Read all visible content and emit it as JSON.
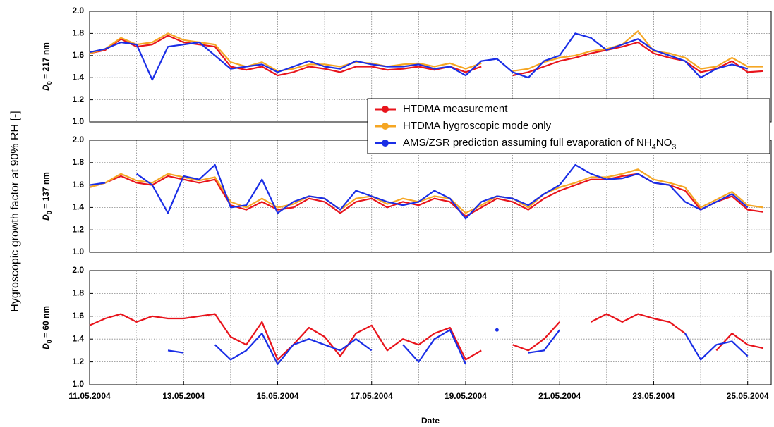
{
  "ylabel": "Hygroscopic growth factor at 90% RH  [-]",
  "chart_data": [
    {
      "type": "line",
      "ylabel": [
        "D",
        "0",
        " = 217 nm"
      ],
      "legend": "center right",
      "ylim": [
        1.0,
        2.0
      ],
      "yticks": [
        {
          "value": 1.0,
          "label": "1.0"
        },
        1.2,
        1.4,
        1.6,
        1.8,
        {
          "value": 2.0,
          "label": "2.0"
        }
      ],
      "grid": true,
      "x": [
        "2004-05-11T00:00",
        "2004-05-11T08:00",
        "2004-05-11T16:00",
        "2004-05-12T00:00",
        "2004-05-12T08:00",
        "2004-05-12T16:00",
        "2004-05-13T00:00",
        "2004-05-13T08:00",
        "2004-05-13T16:00",
        "2004-05-14T00:00",
        "2004-05-14T08:00",
        "2004-05-14T16:00",
        "2004-05-15T00:00",
        "2004-05-15T08:00",
        "2004-05-15T16:00",
        "2004-05-16T00:00",
        "2004-05-16T08:00",
        "2004-05-16T16:00",
        "2004-05-17T00:00",
        "2004-05-17T08:00",
        "2004-05-17T16:00",
        "2004-05-18T00:00",
        "2004-05-18T08:00",
        "2004-05-18T16:00",
        "2004-05-19T00:00",
        "2004-05-19T08:00",
        "2004-05-19T16:00",
        "2004-05-20T00:00",
        "2004-05-20T08:00",
        "2004-05-20T16:00",
        "2004-05-21T00:00",
        "2004-05-21T08:00",
        "2004-05-21T16:00",
        "2004-05-22T00:00",
        "2004-05-22T08:00",
        "2004-05-22T16:00",
        "2004-05-23T00:00",
        "2004-05-23T08:00",
        "2004-05-23T16:00",
        "2004-05-24T00:00",
        "2004-05-24T08:00",
        "2004-05-24T16:00",
        "2004-05-25T00:00",
        "2004-05-25T08:00"
      ],
      "series": [
        {
          "name": "HTDMA measurement",
          "color": "#e8141c",
          "values": [
            1.62,
            1.65,
            1.75,
            1.68,
            1.7,
            1.78,
            1.72,
            1.7,
            1.68,
            1.5,
            1.47,
            1.5,
            1.42,
            1.45,
            1.5,
            1.48,
            1.45,
            1.5,
            1.5,
            1.47,
            1.48,
            1.5,
            1.47,
            1.5,
            1.45,
            1.5,
            null,
            1.42,
            1.45,
            1.5,
            1.55,
            1.58,
            1.62,
            1.65,
            1.68,
            1.72,
            1.62,
            1.58,
            1.55,
            1.45,
            1.48,
            1.55,
            1.45,
            1.46
          ]
        },
        {
          "name": "HTDMA hygroscopic mode only",
          "color": "#f5a623",
          "values": [
            1.62,
            1.66,
            1.76,
            1.7,
            1.72,
            1.8,
            1.74,
            1.72,
            1.7,
            1.54,
            1.5,
            1.54,
            1.46,
            1.48,
            1.52,
            1.52,
            1.5,
            1.54,
            1.53,
            1.5,
            1.52,
            1.53,
            1.5,
            1.53,
            1.48,
            1.53,
            null,
            1.46,
            1.48,
            1.54,
            1.58,
            1.6,
            1.64,
            1.66,
            1.7,
            1.82,
            1.64,
            1.62,
            1.58,
            1.48,
            1.5,
            1.58,
            1.5,
            1.5
          ]
        },
        {
          "name": "AMS/ZSR prediction assuming full evaporation of NH4NO3",
          "color": "#1a2ee6",
          "values": [
            1.63,
            1.66,
            1.72,
            1.7,
            1.38,
            1.68,
            1.7,
            1.72,
            1.6,
            1.48,
            1.5,
            1.52,
            1.45,
            1.5,
            1.55,
            1.5,
            1.48,
            1.55,
            1.52,
            1.5,
            1.5,
            1.52,
            1.48,
            1.5,
            1.42,
            1.55,
            1.57,
            1.45,
            1.4,
            1.55,
            1.6,
            1.8,
            1.76,
            1.65,
            1.7,
            1.75,
            1.65,
            1.6,
            1.55,
            1.4,
            1.48,
            1.52,
            1.48,
            null
          ]
        }
      ]
    },
    {
      "type": "line",
      "ylabel": [
        "D",
        "0",
        " = 137 nm"
      ],
      "ylim": [
        1.0,
        2.0
      ],
      "yticks": [
        {
          "value": 1.0,
          "label": "1.0"
        },
        1.2,
        1.4,
        1.6,
        1.8,
        {
          "value": 2.0,
          "label": "2.0"
        }
      ],
      "grid": true,
      "x": [
        "2004-05-11T00:00",
        "2004-05-11T08:00",
        "2004-05-11T16:00",
        "2004-05-12T00:00",
        "2004-05-12T08:00",
        "2004-05-12T16:00",
        "2004-05-13T00:00",
        "2004-05-13T08:00",
        "2004-05-13T16:00",
        "2004-05-14T00:00",
        "2004-05-14T08:00",
        "2004-05-14T16:00",
        "2004-05-15T00:00",
        "2004-05-15T08:00",
        "2004-05-15T16:00",
        "2004-05-16T00:00",
        "2004-05-16T08:00",
        "2004-05-16T16:00",
        "2004-05-17T00:00",
        "2004-05-17T08:00",
        "2004-05-17T16:00",
        "2004-05-18T00:00",
        "2004-05-18T08:00",
        "2004-05-18T16:00",
        "2004-05-19T00:00",
        "2004-05-19T08:00",
        "2004-05-19T16:00",
        "2004-05-20T00:00",
        "2004-05-20T08:00",
        "2004-05-20T16:00",
        "2004-05-21T00:00",
        "2004-05-21T08:00",
        "2004-05-21T16:00",
        "2004-05-22T00:00",
        "2004-05-22T08:00",
        "2004-05-22T16:00",
        "2004-05-23T00:00",
        "2004-05-23T08:00",
        "2004-05-23T16:00",
        "2004-05-24T00:00",
        "2004-05-24T08:00",
        "2004-05-24T16:00",
        "2004-05-25T00:00",
        "2004-05-25T08:00"
      ],
      "series": [
        {
          "color": "#e8141c",
          "values": [
            1.58,
            1.62,
            1.68,
            1.62,
            1.6,
            1.68,
            1.65,
            1.62,
            1.65,
            1.42,
            1.38,
            1.45,
            1.38,
            1.4,
            1.48,
            1.45,
            1.35,
            1.45,
            1.48,
            1.4,
            1.45,
            1.42,
            1.48,
            1.45,
            1.32,
            1.4,
            1.48,
            1.45,
            1.38,
            1.48,
            1.55,
            1.6,
            1.65,
            1.65,
            1.68,
            1.7,
            1.62,
            1.6,
            1.55,
            1.38,
            1.45,
            1.5,
            1.38,
            1.36
          ]
        },
        {
          "color": "#f5a623",
          "values": [
            1.58,
            1.62,
            1.7,
            1.64,
            1.62,
            1.7,
            1.67,
            1.64,
            1.67,
            1.45,
            1.4,
            1.48,
            1.4,
            1.43,
            1.5,
            1.48,
            1.38,
            1.48,
            1.5,
            1.43,
            1.48,
            1.45,
            1.5,
            1.48,
            1.35,
            1.42,
            1.5,
            1.48,
            1.4,
            1.52,
            1.58,
            1.62,
            1.67,
            1.67,
            1.7,
            1.74,
            1.65,
            1.62,
            1.58,
            1.4,
            1.47,
            1.54,
            1.42,
            1.4
          ]
        },
        {
          "color": "#1a2ee6",
          "values": [
            1.6,
            1.62,
            null,
            1.7,
            1.6,
            1.35,
            1.68,
            1.65,
            1.78,
            1.4,
            1.42,
            1.65,
            1.35,
            1.45,
            1.5,
            1.48,
            1.38,
            1.55,
            1.5,
            1.45,
            1.42,
            1.45,
            1.55,
            1.48,
            1.3,
            1.45,
            1.5,
            1.48,
            1.42,
            1.52,
            1.6,
            1.78,
            1.7,
            1.65,
            1.66,
            1.7,
            1.62,
            1.6,
            1.45,
            1.38,
            1.45,
            1.52,
            1.4,
            null
          ]
        }
      ]
    },
    {
      "type": "line",
      "ylabel": [
        "D",
        "0",
        " = 60 nm"
      ],
      "xlabel": "Date",
      "ylim": [
        1.0,
        2.0
      ],
      "yticks": [
        {
          "value": 1.0,
          "label": "1.0"
        },
        1.2,
        1.4,
        1.6,
        1.8,
        {
          "value": 2.0,
          "label": "2.0"
        }
      ],
      "grid": true,
      "xlim": [
        "2004-05-11T00:00",
        "2004-05-25T12:00"
      ],
      "xticks": [
        {
          "value": "2004-05-11T00:00",
          "label": "11.05.2004"
        },
        {
          "value": "2004-05-13T00:00",
          "label": "13.05.2004"
        },
        {
          "value": "2004-05-15T00:00",
          "label": "15.05.2004"
        },
        {
          "value": "2004-05-17T00:00",
          "label": "17.05.2004"
        },
        {
          "value": "2004-05-19T00:00",
          "label": "19.05.2004"
        },
        {
          "value": "2004-05-21T00:00",
          "label": "21.05.2004"
        },
        {
          "value": "2004-05-23T00:00",
          "label": "23.05.2004"
        },
        {
          "value": "2004-05-25T00:00",
          "label": "25.05.2004"
        }
      ],
      "xminorticks": [
        "2004-05-12T00:00",
        "2004-05-14T00:00",
        "2004-05-16T00:00",
        "2004-05-18T00:00",
        "2004-05-20T00:00",
        "2004-05-22T00:00",
        "2004-05-24T00:00"
      ],
      "x": [
        "2004-05-11T00:00",
        "2004-05-11T08:00",
        "2004-05-11T16:00",
        "2004-05-12T00:00",
        "2004-05-12T08:00",
        "2004-05-12T16:00",
        "2004-05-13T00:00",
        "2004-05-13T08:00",
        "2004-05-13T16:00",
        "2004-05-14T00:00",
        "2004-05-14T08:00",
        "2004-05-14T16:00",
        "2004-05-15T00:00",
        "2004-05-15T08:00",
        "2004-05-15T16:00",
        "2004-05-16T00:00",
        "2004-05-16T08:00",
        "2004-05-16T16:00",
        "2004-05-17T00:00",
        "2004-05-17T08:00",
        "2004-05-17T16:00",
        "2004-05-18T00:00",
        "2004-05-18T08:00",
        "2004-05-18T16:00",
        "2004-05-19T00:00",
        "2004-05-19T08:00",
        "2004-05-19T16:00",
        "2004-05-20T00:00",
        "2004-05-20T08:00",
        "2004-05-20T16:00",
        "2004-05-21T00:00",
        "2004-05-21T08:00",
        "2004-05-21T16:00",
        "2004-05-22T00:00",
        "2004-05-22T08:00",
        "2004-05-22T16:00",
        "2004-05-23T00:00",
        "2004-05-23T08:00",
        "2004-05-23T16:00",
        "2004-05-24T00:00",
        "2004-05-24T08:00",
        "2004-05-24T16:00",
        "2004-05-25T00:00",
        "2004-05-25T08:00"
      ],
      "series": [
        {
          "color": "#e8141c",
          "values": [
            1.52,
            1.58,
            1.62,
            1.55,
            1.6,
            1.58,
            1.58,
            1.6,
            1.62,
            1.42,
            1.35,
            1.55,
            1.22,
            1.35,
            1.5,
            1.42,
            1.25,
            1.45,
            1.52,
            1.3,
            1.4,
            1.35,
            1.45,
            1.5,
            1.22,
            1.3,
            null,
            1.35,
            1.3,
            1.4,
            1.55,
            null,
            1.55,
            1.62,
            1.55,
            1.62,
            1.58,
            1.55,
            1.45,
            null,
            1.3,
            1.45,
            1.35,
            1.32
          ]
        },
        {
          "color": "#1a2ee6",
          "values": [
            null,
            null,
            null,
            null,
            null,
            1.3,
            1.28,
            null,
            1.35,
            1.22,
            1.3,
            1.45,
            1.18,
            1.35,
            1.4,
            1.35,
            1.3,
            1.4,
            1.3,
            null,
            1.35,
            1.2,
            1.4,
            1.48,
            1.18,
            null,
            1.48,
            null,
            1.28,
            1.3,
            1.48,
            null,
            null,
            null,
            null,
            null,
            null,
            null,
            1.45,
            1.22,
            1.35,
            1.38,
            1.25,
            null
          ]
        }
      ]
    }
  ]
}
